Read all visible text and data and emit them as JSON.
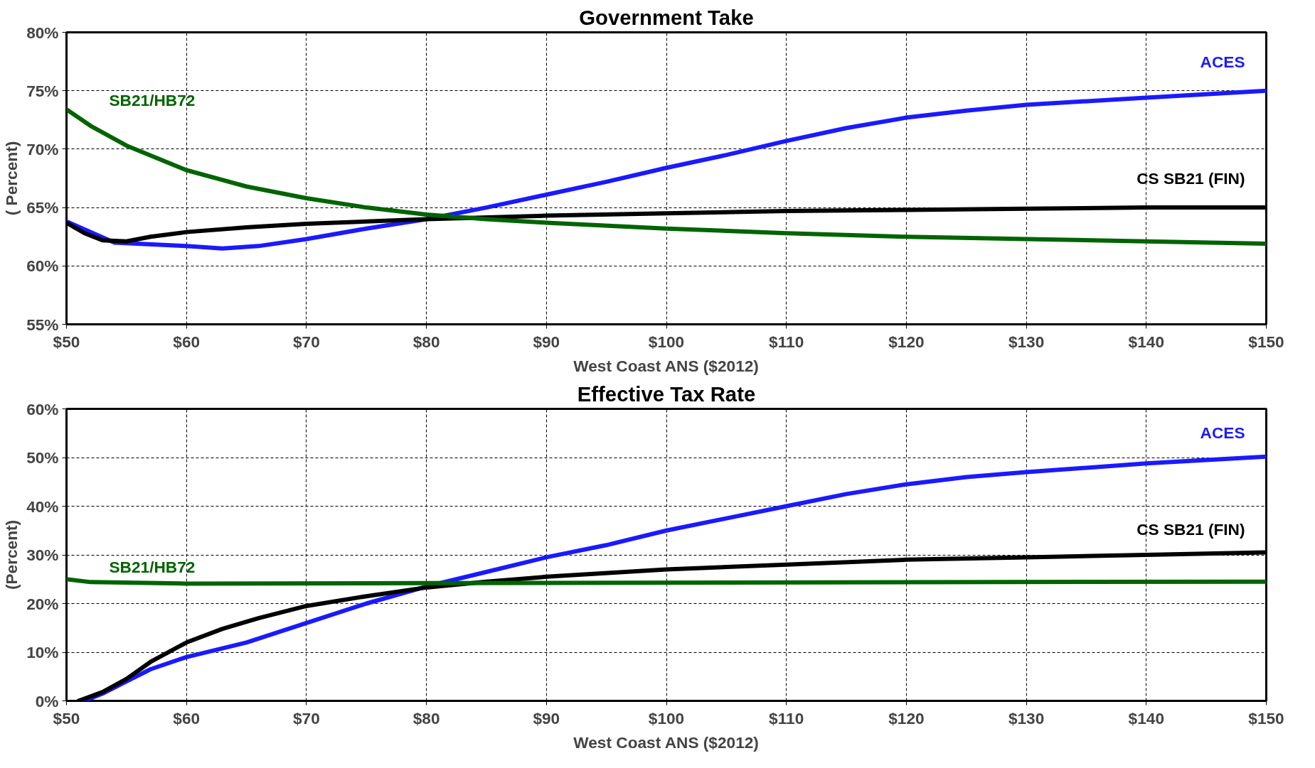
{
  "chart_data": [
    {
      "type": "line",
      "title": "Government Take",
      "xlabel": "West Coast ANS ($2012)",
      "ylabel": "( Percent)",
      "xlim": [
        50,
        150
      ],
      "ylim": [
        55,
        80
      ],
      "xticks": [
        {
          "value": 50,
          "label": "$50"
        },
        {
          "value": 60,
          "label": "$60"
        },
        {
          "value": 70,
          "label": "$70"
        },
        {
          "value": 80,
          "label": "$80"
        },
        {
          "value": 90,
          "label": "$90"
        },
        {
          "value": 100,
          "label": "$100"
        },
        {
          "value": 110,
          "label": "$110"
        },
        {
          "value": 120,
          "label": "$120"
        },
        {
          "value": 130,
          "label": "$130"
        },
        {
          "value": 140,
          "label": "$140"
        },
        {
          "value": 150,
          "label": "$150"
        }
      ],
      "yticks": [
        {
          "value": 55,
          "label": "55%"
        },
        {
          "value": 60,
          "label": "60%"
        },
        {
          "value": 65,
          "label": "65%"
        },
        {
          "value": 70,
          "label": "70%"
        },
        {
          "value": 75,
          "label": "75%"
        },
        {
          "value": 80,
          "label": "80%"
        }
      ],
      "grid": true,
      "line_style": "solid",
      "marker": "none",
      "series": [
        {
          "name": "ACES",
          "color": "#1a1aff",
          "x": [
            50,
            54,
            60,
            63,
            66,
            70,
            75,
            80,
            85,
            90,
            95,
            100,
            105,
            110,
            115,
            120,
            125,
            130,
            140,
            150
          ],
          "values": [
            63.8,
            62.0,
            61.7,
            61.5,
            61.7,
            62.3,
            63.2,
            64.0,
            65.0,
            66.1,
            67.2,
            68.4,
            69.5,
            70.7,
            71.8,
            72.7,
            73.3,
            73.8,
            74.4,
            75.0
          ]
        },
        {
          "name": "CS SB21 (FIN)",
          "color": "#000000",
          "x": [
            50,
            51.5,
            53,
            55,
            57,
            60,
            65,
            70,
            80,
            90,
            100,
            110,
            120,
            130,
            140,
            150
          ],
          "values": [
            63.7,
            62.8,
            62.2,
            62.1,
            62.5,
            62.9,
            63.3,
            63.6,
            64.0,
            64.3,
            64.5,
            64.7,
            64.8,
            64.9,
            65.0,
            65.0
          ]
        },
        {
          "name": "SB21/HB72",
          "color": "#006400",
          "x": [
            50,
            52,
            55,
            60,
            65,
            70,
            75,
            80,
            85,
            90,
            100,
            110,
            120,
            130,
            140,
            150
          ],
          "values": [
            73.4,
            72.0,
            70.3,
            68.2,
            66.8,
            65.8,
            65.0,
            64.4,
            64.0,
            63.7,
            63.2,
            62.8,
            62.5,
            62.3,
            62.1,
            61.9
          ]
        }
      ]
    },
    {
      "type": "line",
      "title": "Effective Tax Rate",
      "xlabel": "West Coast ANS ($2012)",
      "ylabel": "(Percent)",
      "xlim": [
        50,
        150
      ],
      "ylim": [
        0,
        60
      ],
      "xticks": [
        {
          "value": 50,
          "label": "$50"
        },
        {
          "value": 60,
          "label": "$60"
        },
        {
          "value": 70,
          "label": "$70"
        },
        {
          "value": 80,
          "label": "$80"
        },
        {
          "value": 90,
          "label": "$90"
        },
        {
          "value": 100,
          "label": "$100"
        },
        {
          "value": 110,
          "label": "$110"
        },
        {
          "value": 120,
          "label": "$120"
        },
        {
          "value": 130,
          "label": "$130"
        },
        {
          "value": 140,
          "label": "$140"
        },
        {
          "value": 150,
          "label": "$150"
        }
      ],
      "yticks": [
        {
          "value": 0,
          "label": "0%"
        },
        {
          "value": 10,
          "label": "10%"
        },
        {
          "value": 20,
          "label": "20%"
        },
        {
          "value": 30,
          "label": "30%"
        },
        {
          "value": 40,
          "label": "40%"
        },
        {
          "value": 50,
          "label": "50%"
        },
        {
          "value": 60,
          "label": "60%"
        }
      ],
      "grid": true,
      "line_style": "solid",
      "marker": "none",
      "series": [
        {
          "name": "ACES",
          "color": "#1a1aff",
          "x": [
            51.5,
            53,
            55,
            57,
            60,
            65,
            70,
            75,
            80,
            85,
            90,
            95,
            100,
            105,
            110,
            115,
            120,
            125,
            130,
            140,
            150
          ],
          "values": [
            0,
            1.5,
            4,
            6.5,
            9,
            12,
            16,
            20,
            23.5,
            26.5,
            29.5,
            32,
            35,
            37.5,
            40,
            42.5,
            44.5,
            46,
            47,
            48.8,
            50.2
          ]
        },
        {
          "name": "CS SB21 (FIN)",
          "color": "#000000",
          "x": [
            51,
            53,
            55,
            57,
            60,
            63,
            66,
            70,
            75,
            80,
            85,
            90,
            100,
            110,
            120,
            130,
            140,
            150
          ],
          "values": [
            0,
            1.8,
            4.5,
            8,
            12,
            14.8,
            17,
            19.5,
            21.5,
            23.3,
            24.5,
            25.5,
            27,
            28,
            29,
            29.5,
            30,
            30.5
          ]
        },
        {
          "name": "SB21/HB72",
          "color": "#006400",
          "x": [
            50,
            52,
            60,
            80,
            150
          ],
          "values": [
            25,
            24.4,
            24.1,
            24.2,
            24.5
          ]
        }
      ]
    }
  ]
}
